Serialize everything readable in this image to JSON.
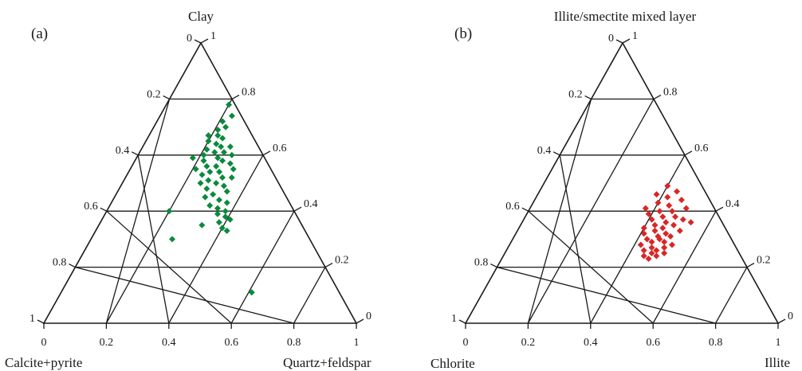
{
  "chart_data": [
    {
      "type": "scatter",
      "subtype": "ternary",
      "panel_label": "(a)",
      "axes": {
        "top": "Clay",
        "left": "Calcite+pyrite",
        "right": "Quartz+feldspar"
      },
      "ticks": {
        "bottom": [
          "0",
          "0.2",
          "0.4",
          "0.6",
          "0.8",
          "1"
        ],
        "left": [
          "1",
          "0.8",
          "0.6",
          "0.4",
          "0.2",
          "0"
        ],
        "right": [
          "1",
          "0.8",
          "0.6",
          "0.4",
          "0.2",
          "0"
        ]
      },
      "grid": true,
      "marker": "diamond",
      "color": "#0a8a3c",
      "points": [
        {
          "clay": 0.78,
          "qf": 0.2
        },
        {
          "clay": 0.74,
          "qf": 0.23
        },
        {
          "clay": 0.72,
          "qf": 0.21
        },
        {
          "clay": 0.7,
          "qf": 0.23
        },
        {
          "clay": 0.69,
          "qf": 0.21
        },
        {
          "clay": 0.67,
          "qf": 0.19
        },
        {
          "clay": 0.67,
          "qf": 0.22
        },
        {
          "clay": 0.66,
          "qf": 0.24
        },
        {
          "clay": 0.65,
          "qf": 0.2
        },
        {
          "clay": 0.64,
          "qf": 0.23
        },
        {
          "clay": 0.63,
          "qf": 0.25
        },
        {
          "clay": 0.63,
          "qf": 0.28
        },
        {
          "clay": 0.62,
          "qf": 0.21
        },
        {
          "clay": 0.61,
          "qf": 0.24
        },
        {
          "clay": 0.61,
          "qf": 0.27
        },
        {
          "clay": 0.6,
          "qf": 0.3
        },
        {
          "clay": 0.6,
          "qf": 0.21
        },
        {
          "clay": 0.59,
          "qf": 0.18
        },
        {
          "clay": 0.59,
          "qf": 0.26
        },
        {
          "clay": 0.58,
          "qf": 0.22
        },
        {
          "clay": 0.58,
          "qf": 0.28
        },
        {
          "clay": 0.57,
          "qf": 0.31
        },
        {
          "clay": 0.56,
          "qf": 0.24
        },
        {
          "clay": 0.56,
          "qf": 0.27
        },
        {
          "clay": 0.55,
          "qf": 0.21
        },
        {
          "clay": 0.55,
          "qf": 0.33
        },
        {
          "clay": 0.54,
          "qf": 0.26
        },
        {
          "clay": 0.54,
          "qf": 0.29
        },
        {
          "clay": 0.53,
          "qf": 0.24
        },
        {
          "clay": 0.52,
          "qf": 0.31
        },
        {
          "clay": 0.52,
          "qf": 0.34
        },
        {
          "clay": 0.51,
          "qf": 0.27
        },
        {
          "clay": 0.5,
          "qf": 0.25
        },
        {
          "clay": 0.5,
          "qf": 0.3
        },
        {
          "clay": 0.49,
          "qf": 0.33
        },
        {
          "clay": 0.48,
          "qf": 0.28
        },
        {
          "clay": 0.47,
          "qf": 0.35
        },
        {
          "clay": 0.46,
          "qf": 0.31
        },
        {
          "clay": 0.45,
          "qf": 0.29
        },
        {
          "clay": 0.44,
          "qf": 0.34
        },
        {
          "clay": 0.43,
          "qf": 0.37
        },
        {
          "clay": 0.42,
          "qf": 0.32
        },
        {
          "clay": 0.41,
          "qf": 0.35
        },
        {
          "clay": 0.4,
          "qf": 0.38
        },
        {
          "clay": 0.4,
          "qf": 0.2
        },
        {
          "clay": 0.39,
          "qf": 0.36
        },
        {
          "clay": 0.38,
          "qf": 0.39
        },
        {
          "clay": 0.37,
          "qf": 0.41
        },
        {
          "clay": 0.36,
          "qf": 0.38
        },
        {
          "clay": 0.35,
          "qf": 0.33
        },
        {
          "clay": 0.34,
          "qf": 0.4
        },
        {
          "clay": 0.33,
          "qf": 0.42
        },
        {
          "clay": 0.3,
          "qf": 0.26
        },
        {
          "clay": 0.11,
          "qf": 0.61
        }
      ]
    },
    {
      "type": "scatter",
      "subtype": "ternary",
      "panel_label": "(b)",
      "axes": {
        "top": "Illite/smectite mixed layer",
        "left": "Chlorite",
        "right": "Illite"
      },
      "ticks": {
        "bottom": [
          "0",
          "0.2",
          "0.4",
          "0.6",
          "0.8",
          "1"
        ],
        "left": [
          "1",
          "0.8",
          "0.6",
          "0.4",
          "0.2",
          "0"
        ],
        "right": [
          "1",
          "0.8",
          "0.6",
          "0.4",
          "0.2",
          "0"
        ]
      },
      "grid": true,
      "marker": "diamond",
      "color": "#d92626",
      "points": [
        {
          "is": 0.49,
          "illite": 0.4
        },
        {
          "is": 0.47,
          "illite": 0.44
        },
        {
          "is": 0.46,
          "illite": 0.38
        },
        {
          "is": 0.45,
          "illite": 0.42
        },
        {
          "is": 0.44,
          "illite": 0.47
        },
        {
          "is": 0.43,
          "illite": 0.4
        },
        {
          "is": 0.42,
          "illite": 0.44
        },
        {
          "is": 0.41,
          "illite": 0.37
        },
        {
          "is": 0.41,
          "illite": 0.5
        },
        {
          "is": 0.4,
          "illite": 0.42
        },
        {
          "is": 0.4,
          "illite": 0.46
        },
        {
          "is": 0.39,
          "illite": 0.39
        },
        {
          "is": 0.38,
          "illite": 0.44
        },
        {
          "is": 0.38,
          "illite": 0.48
        },
        {
          "is": 0.37,
          "illite": 0.41
        },
        {
          "is": 0.37,
          "illite": 0.51
        },
        {
          "is": 0.36,
          "illite": 0.46
        },
        {
          "is": 0.36,
          "illite": 0.54
        },
        {
          "is": 0.35,
          "illite": 0.43
        },
        {
          "is": 0.35,
          "illite": 0.49
        },
        {
          "is": 0.34,
          "illite": 0.4
        },
        {
          "is": 0.34,
          "illite": 0.46
        },
        {
          "is": 0.33,
          "illite": 0.52
        },
        {
          "is": 0.33,
          "illite": 0.44
        },
        {
          "is": 0.32,
          "illite": 0.48
        },
        {
          "is": 0.32,
          "illite": 0.41
        },
        {
          "is": 0.31,
          "illite": 0.46
        },
        {
          "is": 0.31,
          "illite": 0.5
        },
        {
          "is": 0.3,
          "illite": 0.43
        },
        {
          "is": 0.3,
          "illite": 0.47
        },
        {
          "is": 0.29,
          "illite": 0.45
        },
        {
          "is": 0.29,
          "illite": 0.49
        },
        {
          "is": 0.28,
          "illite": 0.42
        },
        {
          "is": 0.28,
          "illite": 0.52
        },
        {
          "is": 0.27,
          "illite": 0.46
        },
        {
          "is": 0.27,
          "illite": 0.5
        },
        {
          "is": 0.26,
          "illite": 0.44
        },
        {
          "is": 0.26,
          "illite": 0.48
        },
        {
          "is": 0.25,
          "illite": 0.47
        },
        {
          "is": 0.25,
          "illite": 0.51
        },
        {
          "is": 0.24,
          "illite": 0.45
        },
        {
          "is": 0.24,
          "illite": 0.49
        },
        {
          "is": 0.23,
          "illite": 0.47
        }
      ]
    }
  ]
}
